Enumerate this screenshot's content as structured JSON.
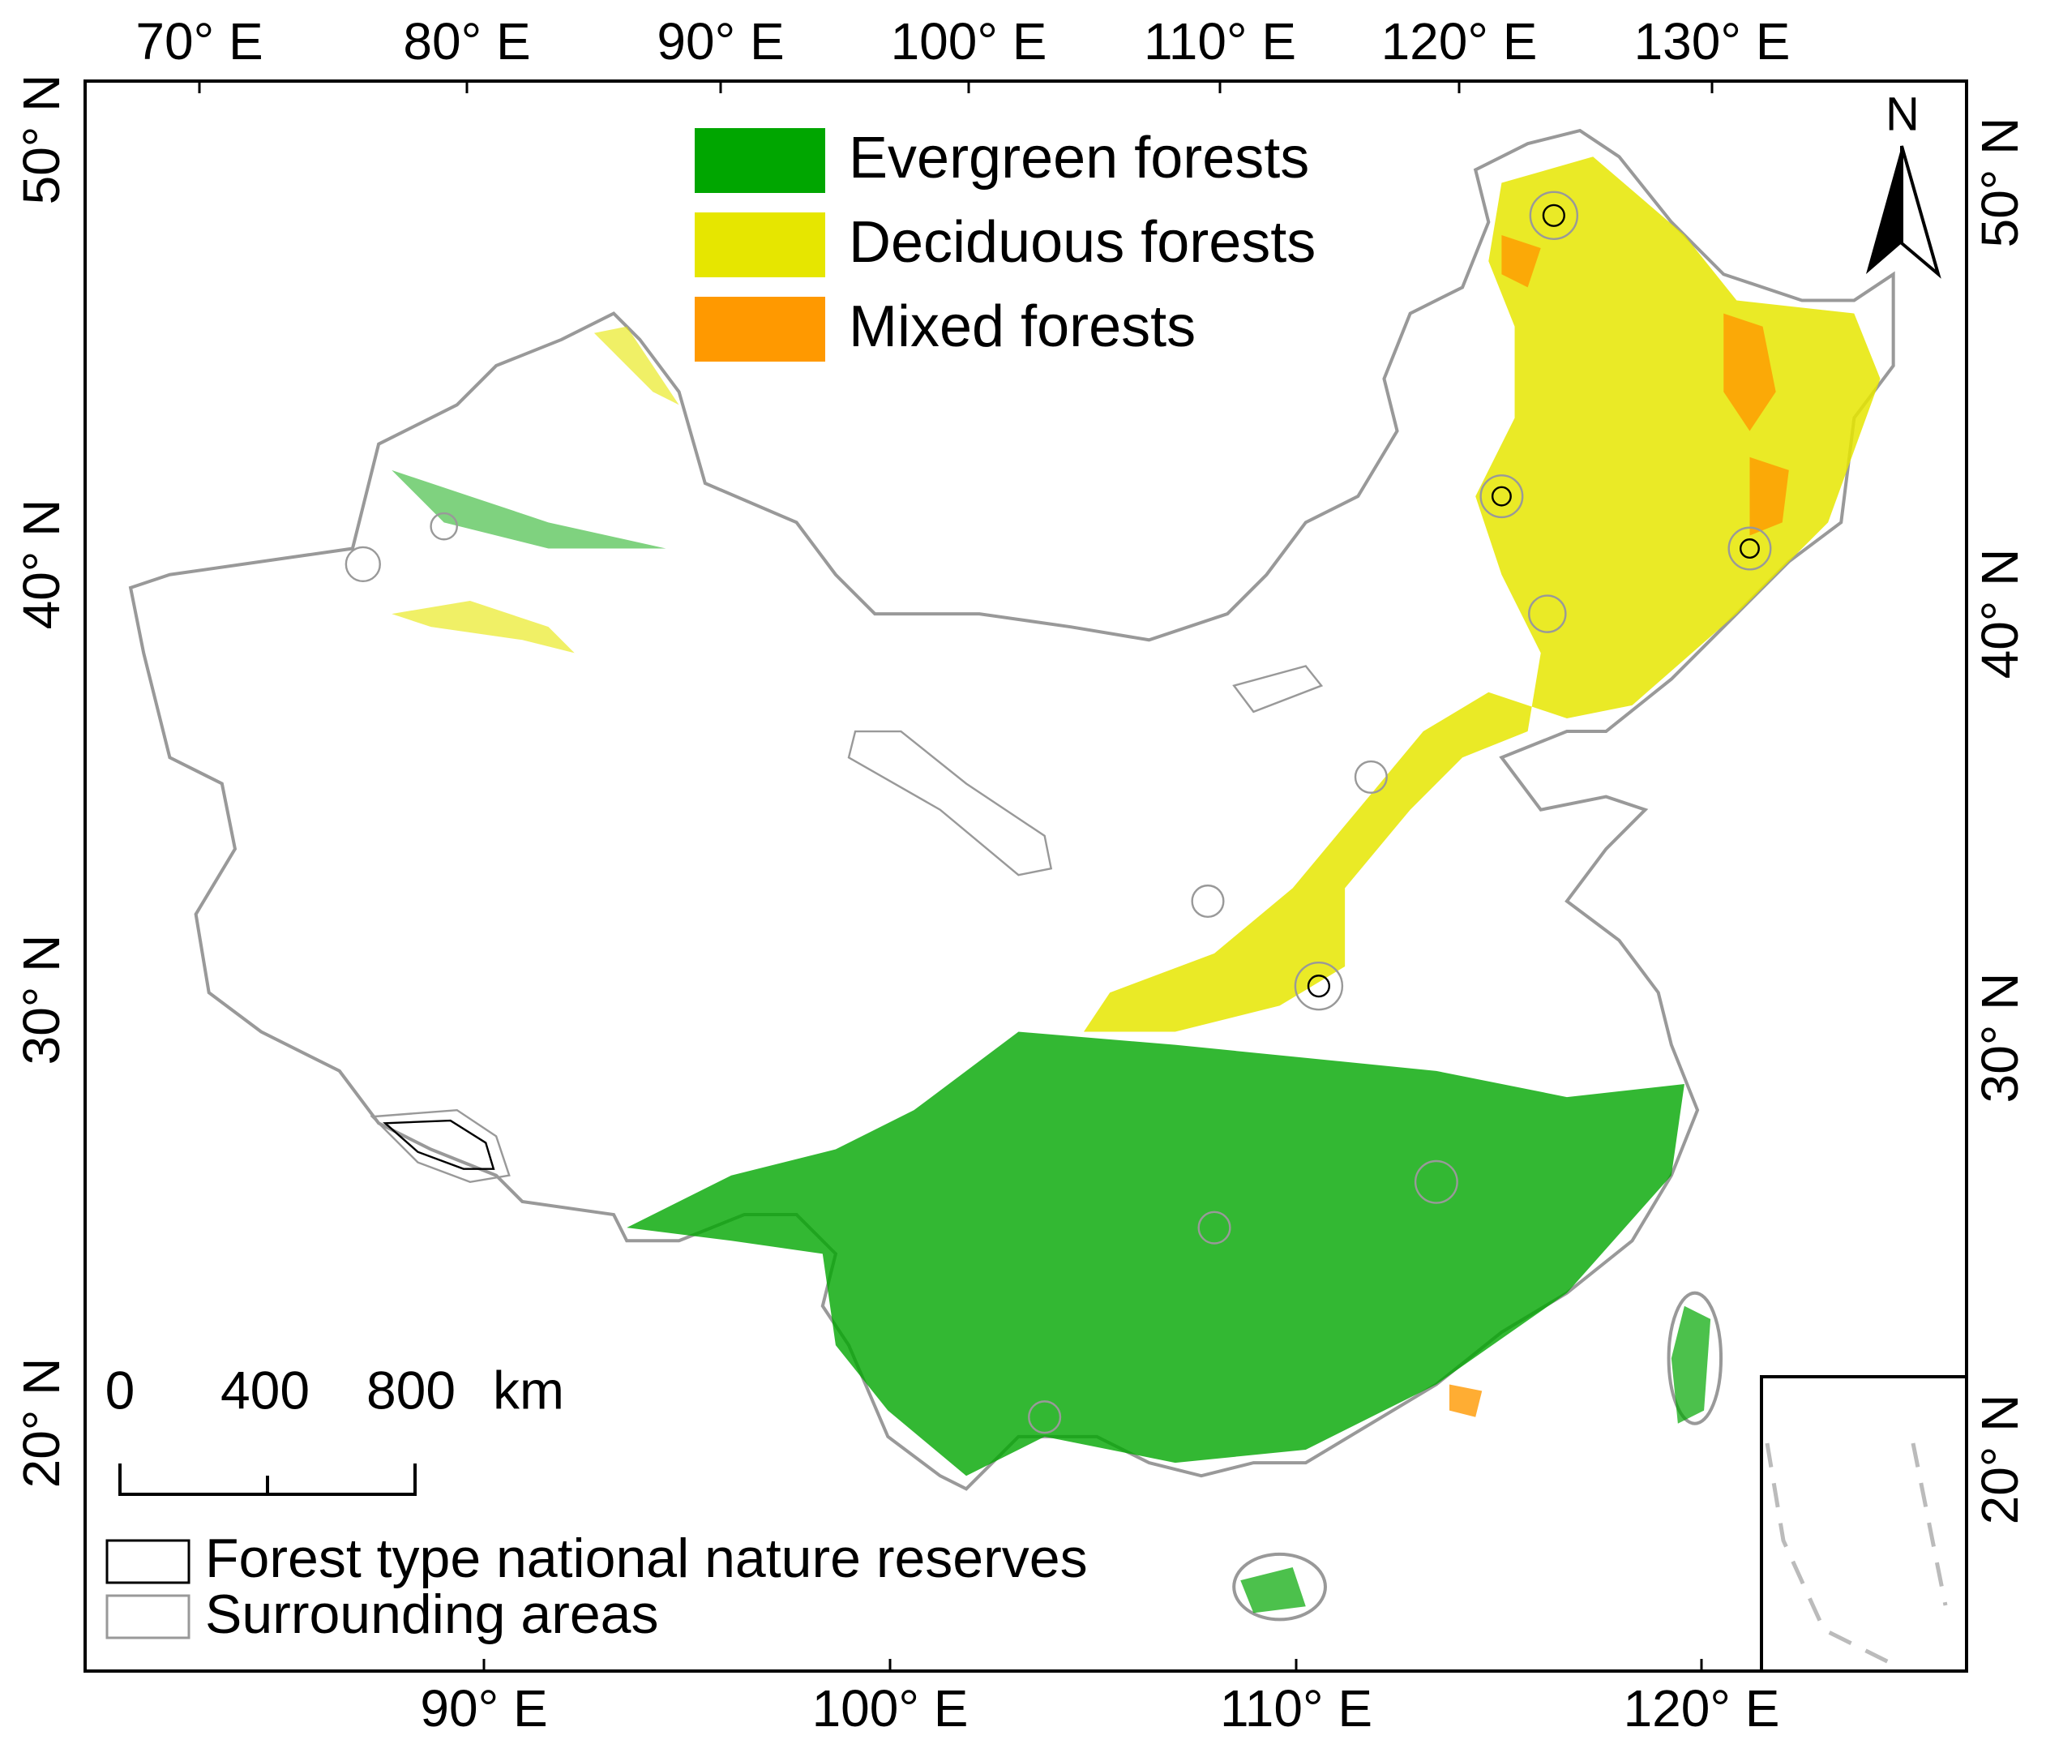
{
  "top_axis_labels": [
    "70° E",
    "80° E",
    "90° E",
    "100° E",
    "110° E",
    "120° E",
    "130° E"
  ],
  "bottom_axis_labels": [
    "90° E",
    "100° E",
    "110° E",
    "120° E"
  ],
  "left_axis_labels": [
    "50° N",
    "40° N",
    "30° N",
    "20° N"
  ],
  "right_axis_labels": [
    "50° N",
    "40° N",
    "30° N",
    "20° N"
  ],
  "legend": [
    {
      "label": "Evergreen forests",
      "color": "#00a600"
    },
    {
      "label": "Deciduous forests",
      "color": "#e6e600"
    },
    {
      "label": "Mixed forests",
      "color": "#ff9900"
    }
  ],
  "north_arrow": "N",
  "scale_bar": {
    "labels": [
      "0",
      "400",
      "800"
    ],
    "unit": "km"
  },
  "reserve_legend": [
    "Forest type national nature reserves",
    "Surrounding areas"
  ]
}
